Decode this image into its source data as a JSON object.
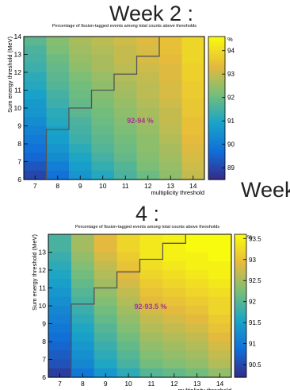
{
  "labels": {
    "week2_title": "Week 2 :",
    "week_word": "Week",
    "week4_number": "4 :"
  },
  "chart_data": [
    {
      "type": "heatmap",
      "title": "Percentage of fission-tagged events among total counts above thresholds",
      "xlabel": "multiplicity threshold",
      "ylabel": "Sum energy threshold (MeV)",
      "x_edges": [
        6.5,
        7.5,
        8.5,
        9.5,
        10.5,
        11.5,
        12.5,
        13.5,
        14.5
      ],
      "y_edges": [
        6,
        7,
        8,
        9,
        10,
        11,
        12,
        13,
        14
      ],
      "y_rows_per_unit": 2,
      "x_ticks": [
        "7",
        "8",
        "9",
        "10",
        "11",
        "12",
        "13",
        "14"
      ],
      "y_ticks": [
        "6",
        "7",
        "8",
        "9",
        "10",
        "11",
        "12",
        "13",
        "14"
      ],
      "colorbar": {
        "unit": "%",
        "min": 88.5,
        "max": 94.6,
        "ticks": [
          "89",
          "90",
          "91",
          "92",
          "93",
          "94"
        ]
      },
      "annotation": "92-94 %",
      "z": [
        [
          91.8,
          92.3,
          92.7,
          92.9,
          93.1,
          93.3,
          93.5,
          93.9
        ],
        [
          91.6,
          92.2,
          92.6,
          92.8,
          93.0,
          93.2,
          93.5,
          93.9
        ],
        [
          91.5,
          92.0,
          92.5,
          92.7,
          93.0,
          93.2,
          93.4,
          93.9
        ],
        [
          91.4,
          91.9,
          92.4,
          92.7,
          92.9,
          93.1,
          93.3,
          93.8
        ],
        [
          91.2,
          91.8,
          92.2,
          92.5,
          92.8,
          93.0,
          93.3,
          93.8
        ],
        [
          91.1,
          91.7,
          92.1,
          92.4,
          92.7,
          92.9,
          93.2,
          93.7
        ],
        [
          90.9,
          91.5,
          92.0,
          92.3,
          92.6,
          92.9,
          93.2,
          93.7
        ],
        [
          90.7,
          91.4,
          91.9,
          92.2,
          92.5,
          92.8,
          93.1,
          93.6
        ],
        [
          90.6,
          91.2,
          91.8,
          92.1,
          92.4,
          92.7,
          93.0,
          93.6
        ],
        [
          90.4,
          91.1,
          91.6,
          92.0,
          92.3,
          92.6,
          93.0,
          93.5
        ],
        [
          90.2,
          90.9,
          91.5,
          91.9,
          92.2,
          92.5,
          92.9,
          93.5
        ],
        [
          90.0,
          90.8,
          91.4,
          91.8,
          92.1,
          92.4,
          92.8,
          93.4
        ],
        [
          89.8,
          90.6,
          91.2,
          91.7,
          92.0,
          92.4,
          92.7,
          93.3
        ],
        [
          89.6,
          90.4,
          91.0,
          91.5,
          91.9,
          92.3,
          92.6,
          93.2
        ],
        [
          89.3,
          90.1,
          90.8,
          91.3,
          91.7,
          92.2,
          92.5,
          93.1
        ],
        [
          89.0,
          89.8,
          90.6,
          91.1,
          91.6,
          92.0,
          92.4,
          93.0
        ]
      ],
      "boundary": [
        [
          7.5,
          6
        ],
        [
          7.5,
          8.8
        ],
        [
          8.5,
          8.8
        ],
        [
          8.5,
          10
        ],
        [
          9.5,
          10
        ],
        [
          9.5,
          11
        ],
        [
          10.5,
          11
        ],
        [
          10.5,
          11.9
        ],
        [
          11.5,
          11.9
        ],
        [
          11.5,
          12.9
        ],
        [
          12.5,
          12.9
        ],
        [
          12.5,
          14
        ]
      ]
    },
    {
      "type": "heatmap",
      "title": "Percentage of fission-tagged events among total counts above thresholds",
      "xlabel": "multiplicity threshold",
      "ylabel": "Sum energy threshold (MeV)",
      "x_edges": [
        6.5,
        7.5,
        8.5,
        9.5,
        10.5,
        11.5,
        12.5,
        13.5,
        14.5
      ],
      "y_edges": [
        6,
        7,
        8,
        9,
        10,
        11,
        12,
        13,
        14
      ],
      "y_rows_per_unit": 2,
      "x_ticks": [
        "7",
        "8",
        "9",
        "10",
        "11",
        "12",
        "13",
        "14"
      ],
      "y_ticks": [
        "6",
        "7",
        "8",
        "9",
        "10",
        "11",
        "12",
        "13"
      ],
      "colorbar": {
        "unit": "%",
        "min": 90.2,
        "max": 93.6,
        "ticks": [
          "90.5",
          "91",
          "91.5",
          "92",
          "92.5",
          "93",
          "93.5"
        ]
      },
      "annotation": "92-93.5 %",
      "z": [
        [
          91.9,
          92.5,
          92.9,
          93.2,
          93.4,
          93.5,
          93.6,
          93.6
        ],
        [
          91.9,
          92.5,
          92.9,
          93.2,
          93.4,
          93.5,
          93.6,
          93.6
        ],
        [
          91.8,
          92.4,
          92.8,
          93.1,
          93.4,
          93.5,
          93.5,
          93.6
        ],
        [
          91.7,
          92.3,
          92.7,
          93.0,
          93.3,
          93.4,
          93.5,
          93.5
        ],
        [
          91.6,
          92.2,
          92.6,
          92.9,
          93.2,
          93.3,
          93.4,
          93.5
        ],
        [
          91.5,
          92.1,
          92.5,
          92.8,
          93.1,
          93.2,
          93.3,
          93.4
        ],
        [
          91.4,
          92.0,
          92.4,
          92.7,
          93.0,
          93.1,
          93.2,
          93.3
        ],
        [
          91.3,
          91.9,
          92.3,
          92.6,
          92.9,
          93.0,
          93.1,
          93.2
        ],
        [
          91.2,
          91.8,
          92.2,
          92.5,
          92.8,
          92.9,
          93.0,
          93.2
        ],
        [
          91.1,
          91.7,
          92.1,
          92.4,
          92.7,
          92.8,
          92.9,
          93.1
        ],
        [
          91.0,
          91.6,
          92.0,
          92.3,
          92.6,
          92.7,
          92.8,
          93.0
        ],
        [
          90.9,
          91.5,
          91.9,
          92.2,
          92.5,
          92.6,
          92.7,
          92.9
        ],
        [
          90.8,
          91.4,
          91.8,
          92.1,
          92.4,
          92.5,
          92.6,
          92.8
        ],
        [
          90.7,
          91.3,
          91.7,
          92.0,
          92.3,
          92.4,
          92.5,
          92.7
        ],
        [
          90.6,
          91.2,
          91.6,
          91.9,
          92.2,
          92.3,
          92.4,
          92.6
        ],
        [
          90.4,
          91.0,
          91.4,
          91.7,
          92.0,
          92.1,
          92.2,
          92.4
        ]
      ],
      "boundary": [
        [
          7.5,
          6
        ],
        [
          7.5,
          10.1
        ],
        [
          8.5,
          10.1
        ],
        [
          8.5,
          11
        ],
        [
          9.5,
          11
        ],
        [
          9.5,
          11.9
        ],
        [
          10.5,
          11.9
        ],
        [
          10.5,
          12.6
        ],
        [
          11.5,
          12.6
        ],
        [
          11.5,
          13.5
        ],
        [
          12.5,
          13.5
        ],
        [
          12.5,
          14
        ]
      ]
    }
  ]
}
